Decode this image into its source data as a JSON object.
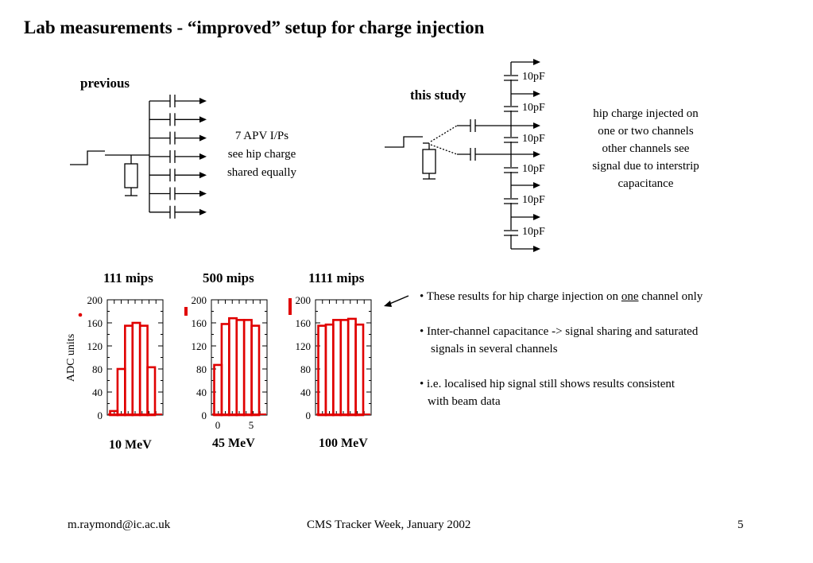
{
  "title": "Lab measurements - “improved” setup for charge injection",
  "left_circuit": {
    "label": "previous",
    "note_lines": [
      "7 APV I/Ps",
      "see hip charge",
      "shared equally"
    ]
  },
  "right_circuit": {
    "label": "this study",
    "capacitor_label": "10pF",
    "capacitor_labels": [
      "10pF",
      "10pF",
      "10pF",
      "10pF",
      "10pF",
      "10pF"
    ],
    "note_lines": [
      "hip charge injected on",
      "one or two channels",
      "other channels see",
      "signal due to interstrip",
      "capacitance"
    ]
  },
  "charts": {
    "ylabel": "ADC units",
    "panels": [
      {
        "mips": "111 mips",
        "energy": "10 MeV"
      },
      {
        "mips": "500 mips",
        "energy": "45 MeV"
      },
      {
        "mips": "1111 mips",
        "energy": "100 MeV"
      }
    ]
  },
  "chart_data": [
    {
      "type": "bar",
      "title": "111 mips",
      "xlabel": "10 MeV",
      "ylabel": "ADC units",
      "ylim": [
        0,
        200
      ],
      "yticks": [
        0,
        40,
        80,
        120,
        160,
        200
      ],
      "x": [
        1,
        2,
        3,
        4,
        5,
        6
      ],
      "values": [
        7,
        80,
        155,
        160,
        155,
        83
      ],
      "color": "#e00000"
    },
    {
      "type": "bar",
      "title": "500 mips",
      "xlabel": "45 MeV",
      "ylim": [
        0,
        200
      ],
      "yticks": [
        0,
        40,
        80,
        120,
        160,
        200
      ],
      "xticks": [
        0,
        5
      ],
      "x": [
        1,
        2,
        3,
        4,
        5,
        6
      ],
      "values": [
        87,
        158,
        168,
        165,
        165,
        155
      ],
      "color": "#e00000"
    },
    {
      "type": "bar",
      "title": "1111 mips",
      "xlabel": "100 MeV",
      "ylim": [
        0,
        200
      ],
      "yticks": [
        0,
        40,
        80,
        120,
        160,
        200
      ],
      "x": [
        1,
        2,
        3,
        4,
        5,
        6
      ],
      "values": [
        155,
        157,
        165,
        165,
        167,
        157
      ],
      "color": "#e00000"
    }
  ],
  "bullets": [
    {
      "pre": "• These results for hip charge injection on ",
      "u": "one",
      "post": " channel only"
    },
    {
      "line1": "• Inter-channel capacitance -> signal sharing and saturated",
      "line2": "signals in several channels"
    },
    {
      "line1": "• i.e. localised hip signal still shows results consistent",
      "line2": "with beam data"
    }
  ],
  "footer": {
    "email": "m.raymond@ic.ac.uk",
    "event": "CMS Tracker Week, January 2002",
    "page": "5"
  }
}
